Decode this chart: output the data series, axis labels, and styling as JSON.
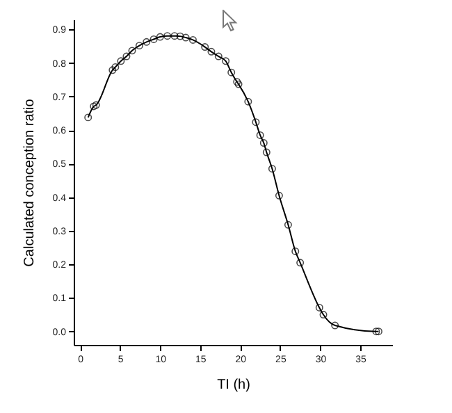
{
  "chart_data": {
    "type": "line",
    "xlabel": "TI (h)",
    "ylabel": "Calculated  conception ratio",
    "x": [
      1.0,
      1.7,
      2.0,
      4.05,
      4.4,
      5.1,
      5.8,
      6.5,
      7.4,
      8.3,
      9.2,
      10.0,
      10.9,
      11.8,
      12.5,
      13.2,
      14.1,
      15.6,
      16.4,
      17.3,
      18.2,
      18.9,
      19.6,
      19.8,
      21.0,
      21.96,
      22.5,
      22.95,
      23.3,
      24.0,
      24.87,
      26.0,
      26.9,
      27.5,
      29.9,
      30.4,
      31.85,
      37.0,
      37.3
    ],
    "series": [
      {
        "color": "#000000",
        "values": [
          0.638,
          0.671,
          0.675,
          0.779,
          0.788,
          0.806,
          0.82,
          0.837,
          0.852,
          0.863,
          0.871,
          0.878,
          0.881,
          0.881,
          0.88,
          0.876,
          0.869,
          0.848,
          0.834,
          0.82,
          0.806,
          0.772,
          0.744,
          0.737,
          0.685,
          0.624,
          0.585,
          0.562,
          0.534,
          0.485,
          0.405,
          0.318,
          0.239,
          0.205,
          0.071,
          0.05,
          0.018,
          0.0,
          0.0
        ]
      }
    ],
    "xlim": [
      -0.8,
      39
    ],
    "ylim": [
      -0.04,
      0.93
    ],
    "xticks": [
      0,
      5,
      10,
      15,
      20,
      25,
      30,
      35
    ],
    "yticks": [
      {
        "value": 0,
        "label": "0.0"
      },
      0.1,
      0.2,
      0.3,
      0.4,
      0.5,
      0.6,
      0.7,
      0.8,
      0.9
    ],
    "grid": false,
    "marker": "circle",
    "line_style": "solid"
  }
}
